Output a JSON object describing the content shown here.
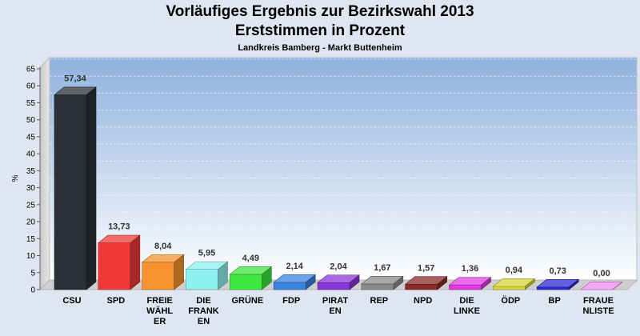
{
  "header": {
    "title": "Vorläufiges Ergebnis zur Bezirkswahl 2013",
    "subtitle": "Erststimmen in Prozent",
    "region": "Landkreis Bamberg - Markt Buttenheim"
  },
  "chart_data": {
    "type": "bar",
    "title": "Vorläufiges Ergebnis zur Bezirkswahl 2013",
    "subtitle": "Erststimmen in Prozent",
    "xlabel": "",
    "ylabel": "%",
    "ylim": [
      0,
      65
    ],
    "yticks": [
      0,
      5,
      10,
      15,
      20,
      25,
      30,
      35,
      40,
      45,
      50,
      55,
      60,
      65
    ],
    "grid": true,
    "categories": [
      [
        "CSU"
      ],
      [
        "SPD"
      ],
      [
        "FREIE",
        "WÄHL",
        "ER"
      ],
      [
        "DIE",
        "FRANK",
        "EN"
      ],
      [
        "GRÜNE"
      ],
      [
        "FDP"
      ],
      [
        "PIRAT",
        "EN"
      ],
      [
        "REP"
      ],
      [
        "NPD"
      ],
      [
        "DIE",
        "LINKE"
      ],
      [
        "ÖDP"
      ],
      [
        "BP"
      ],
      [
        "FRAUE",
        "NLISTE"
      ]
    ],
    "values": [
      57.34,
      13.73,
      8.04,
      5.95,
      4.49,
      2.14,
      2.04,
      1.67,
      1.57,
      1.36,
      0.94,
      0.73,
      0.0
    ],
    "value_labels": [
      "57,34",
      "13,73",
      "8,04",
      "5,95",
      "4,49",
      "2,14",
      "2,04",
      "1,67",
      "1,57",
      "1,36",
      "0,94",
      "0,73",
      "0,00"
    ],
    "colors": [
      "#2b2f36",
      "#f03838",
      "#f7942f",
      "#8ff0f0",
      "#3ee63e",
      "#3a84e0",
      "#8a35d8",
      "#8a8a8a",
      "#8c2a2a",
      "#e03ae0",
      "#d6d636",
      "#2a2ad6",
      "#f08af0"
    ]
  }
}
